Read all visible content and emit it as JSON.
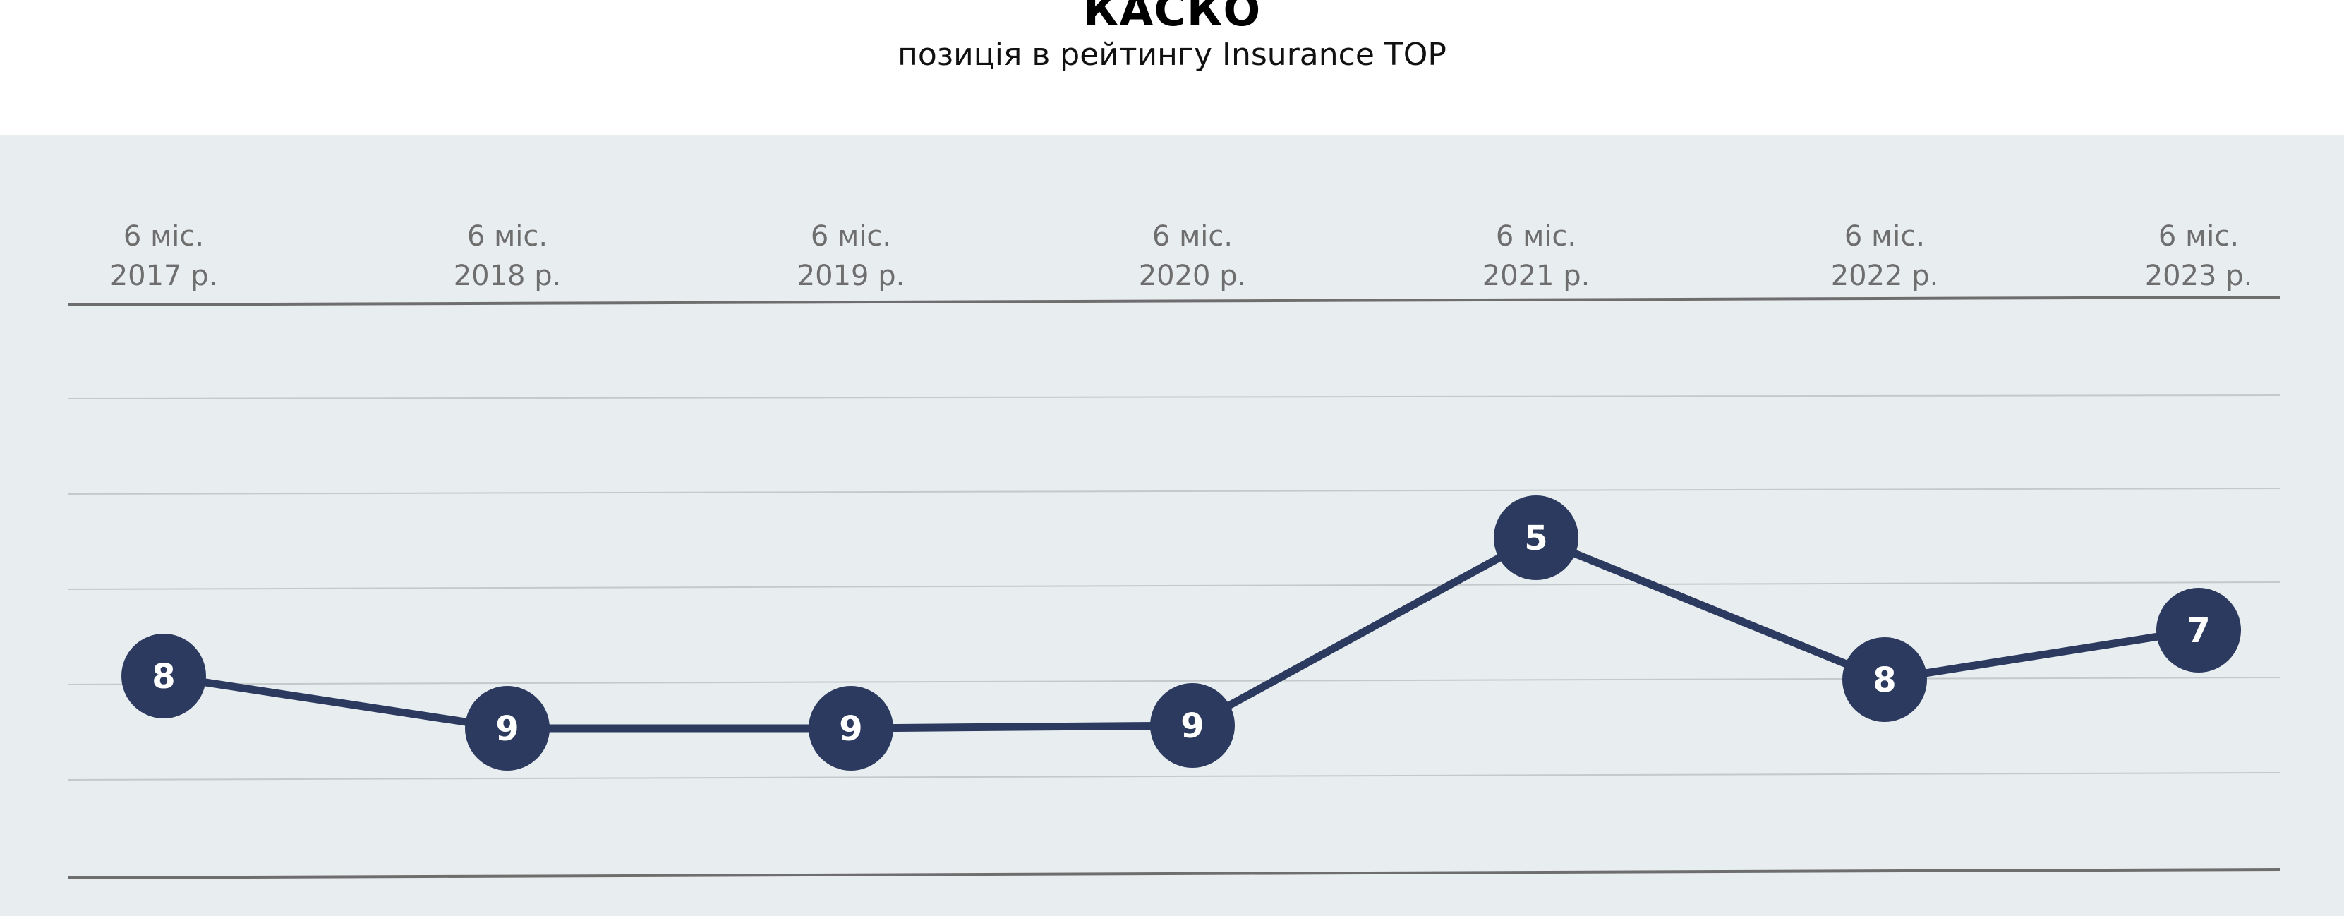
{
  "title": "КАСКО",
  "subtitle": "позиція в рейтингу Insurance TOP",
  "colors": {
    "panel": "#e8edf0",
    "line": "#2b3a5e",
    "marker": "#2b3a5e",
    "marker_text": "#ffffff",
    "grid": "#c4c9cc",
    "axis": "#6e6e6e",
    "tick_text": "#6e6e6e"
  },
  "chart_data": {
    "type": "line",
    "categories": [
      [
        "6 міс.",
        "2017 р."
      ],
      [
        "6 міс.",
        "2018 р."
      ],
      [
        "6 міс.",
        "2019 р."
      ],
      [
        "6 міс.",
        "2020 р."
      ],
      [
        "6 міс.",
        "2021 р."
      ],
      [
        "6 міс.",
        "2022 р."
      ],
      [
        "6 міс.",
        "2023 р."
      ]
    ],
    "values": [
      8,
      9,
      9,
      9,
      5,
      8,
      7
    ],
    "data_labels": [
      "8",
      "9",
      "9",
      "9",
      "5",
      "8",
      "7"
    ],
    "y_axis": "inverted rank, tick labels hidden",
    "grid": true,
    "legend": "none"
  }
}
